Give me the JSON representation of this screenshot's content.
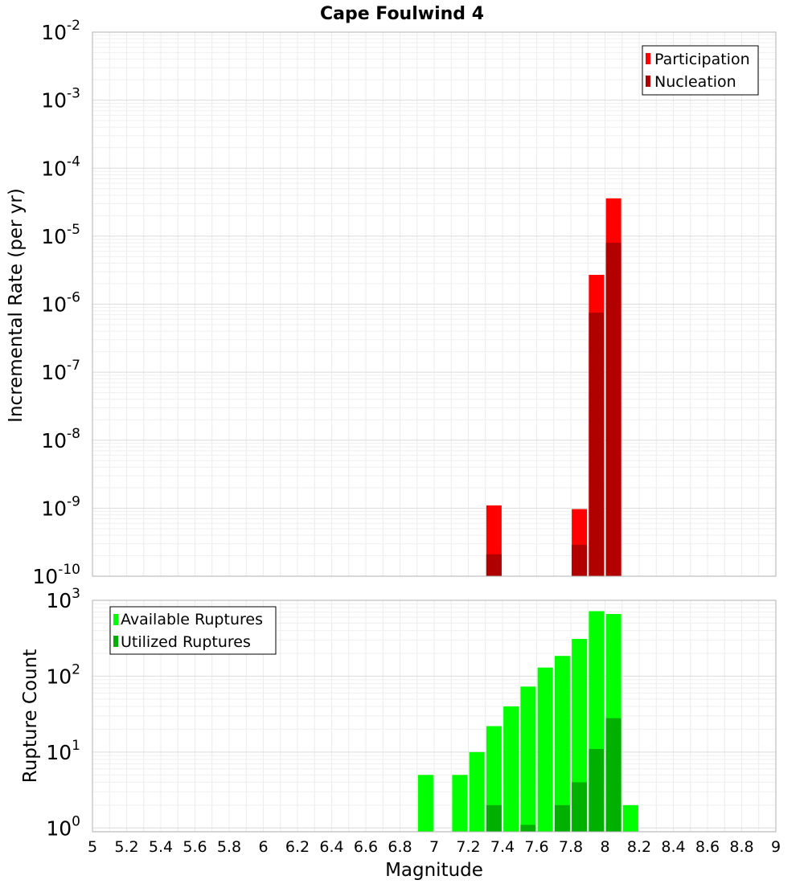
{
  "chart_data": [
    {
      "type": "bar",
      "title": "Cape Foulwind 4",
      "ylabel": "Incremental Rate (per yr)",
      "xlabel": "",
      "scale": "log",
      "xlim": [
        5,
        9
      ],
      "ylim_exp": [
        -10,
        -2
      ],
      "y_ticks": [
        {
          "base": "10",
          "exp": "-10"
        },
        {
          "base": "10",
          "exp": "-9"
        },
        {
          "base": "10",
          "exp": "-8"
        },
        {
          "base": "10",
          "exp": "-7"
        },
        {
          "base": "10",
          "exp": "-6"
        },
        {
          "base": "10",
          "exp": "-5"
        },
        {
          "base": "10",
          "exp": "-4"
        },
        {
          "base": "10",
          "exp": "-3"
        },
        {
          "base": "10",
          "exp": "-2"
        }
      ],
      "legend": [
        "Participation",
        "Nucleation"
      ],
      "colors": {
        "Participation": "#ff0000",
        "Nucleation": "#b00000"
      },
      "series": [
        {
          "name": "Participation",
          "x": [
            7.35,
            7.85,
            7.95,
            8.05
          ],
          "values": [
            1.1e-09,
            9.7e-10,
            2.7e-06,
            3.6e-05
          ]
        },
        {
          "name": "Nucleation",
          "x": [
            7.35,
            7.85,
            7.95,
            8.05
          ],
          "values": [
            2.1e-10,
            2.9e-10,
            7.5e-07,
            8e-06
          ]
        }
      ]
    },
    {
      "type": "bar",
      "title": "",
      "ylabel": "Rupture Count",
      "xlabel": "Magnitude",
      "scale": "log",
      "xlim": [
        5,
        9
      ],
      "ylim_exp": [
        -0.05,
        3
      ],
      "y_ticks": [
        {
          "base": "10",
          "exp": "0"
        },
        {
          "base": "10",
          "exp": "1"
        },
        {
          "base": "10",
          "exp": "2"
        },
        {
          "base": "10",
          "exp": "3"
        }
      ],
      "x_ticks": [
        "5",
        "5.2",
        "5.4",
        "5.6",
        "5.8",
        "6",
        "6.2",
        "6.4",
        "6.6",
        "6.8",
        "7",
        "7.2",
        "7.4",
        "7.6",
        "7.8",
        "8",
        "8.2",
        "8.4",
        "8.6",
        "8.8",
        "9"
      ],
      "legend": [
        "Available Ruptures",
        "Utilized Ruptures"
      ],
      "colors": {
        "Available Ruptures": "#00ff00",
        "Utilized Ruptures": "#00b000"
      },
      "series": [
        {
          "name": "Available Ruptures",
          "x": [
            6.95,
            7.15,
            7.25,
            7.35,
            7.45,
            7.55,
            7.65,
            7.75,
            7.85,
            7.95,
            8.05,
            8.15
          ],
          "values": [
            5,
            5,
            10,
            22,
            40,
            73,
            130,
            185,
            310,
            720,
            660,
            2
          ]
        },
        {
          "name": "Utilized Ruptures",
          "x": [
            7.35,
            7.55,
            7.75,
            7.85,
            7.95,
            8.05
          ],
          "values": [
            2,
            1.1,
            2,
            4,
            11,
            28
          ]
        }
      ]
    }
  ]
}
